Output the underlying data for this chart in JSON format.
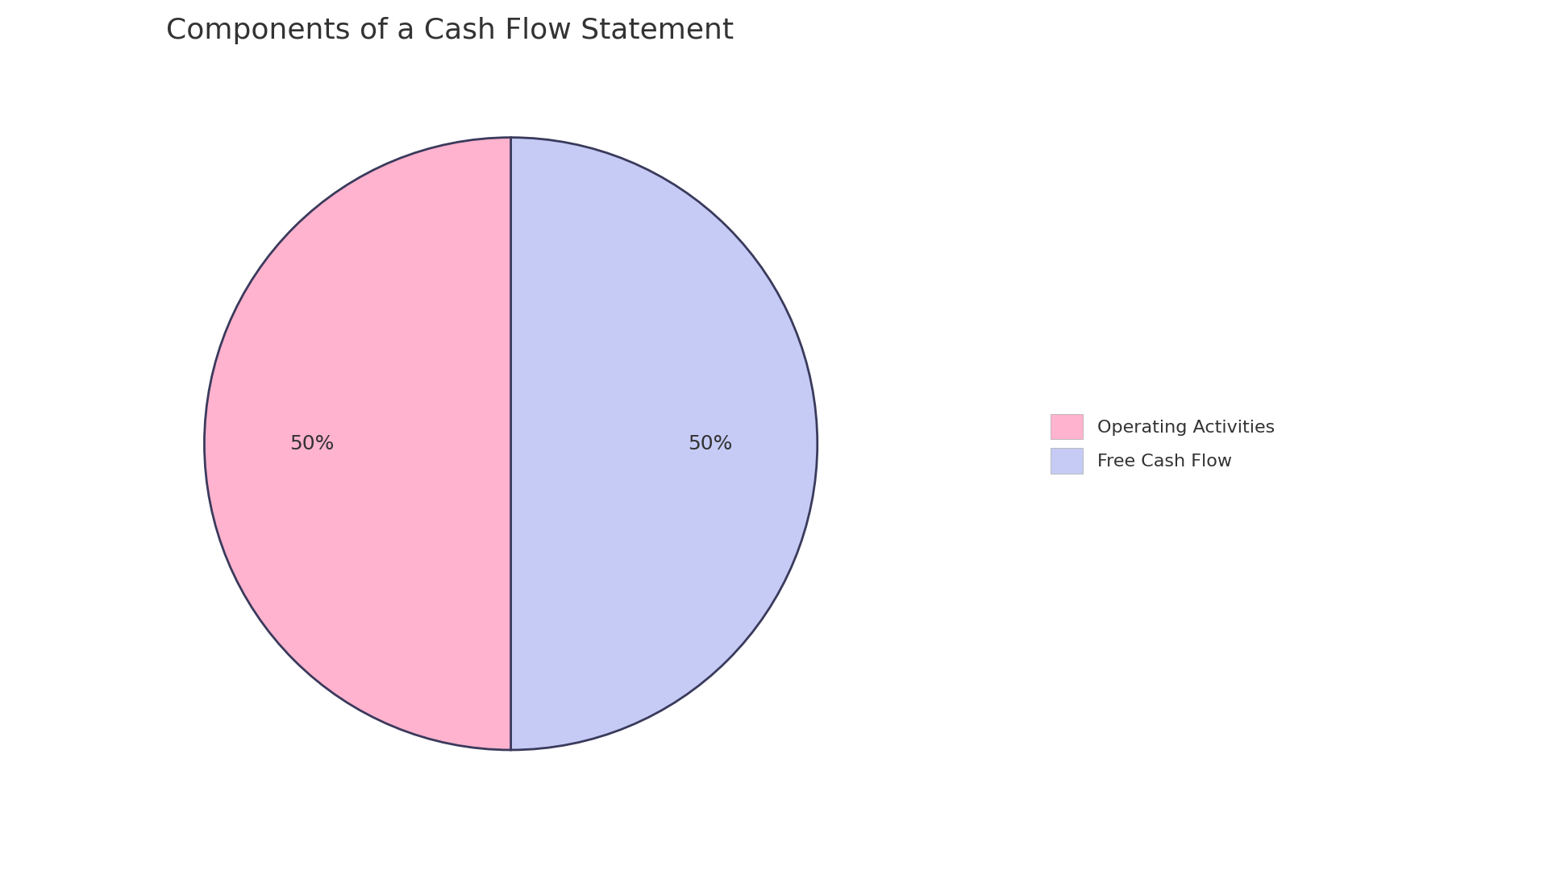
{
  "title": "Components of a Cash Flow Statement",
  "slices": [
    50,
    50
  ],
  "labels": [
    "Free Cash Flow",
    "Operating Activities"
  ],
  "colors": [
    "#C5CBF5",
    "#FFB3CE"
  ],
  "edge_color": "#3a3a5c",
  "edge_width": 2.0,
  "text_color": "#333333",
  "title_fontsize": 26,
  "autopct_fontsize": 18,
  "legend_fontsize": 16,
  "background_color": "#ffffff",
  "startangle": 90,
  "legend_labels": [
    "Operating Activities",
    "Free Cash Flow"
  ],
  "legend_colors": [
    "#FFB3CE",
    "#C5CBF5"
  ]
}
